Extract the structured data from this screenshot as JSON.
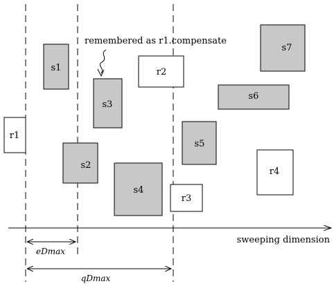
{
  "annotation": {
    "text": "remembered as r1.compensate"
  },
  "axis": {
    "label": "sweeping dimension"
  },
  "dimensions": [
    {
      "id": "eDmax",
      "label": "eDmax"
    },
    {
      "id": "qDmax",
      "label": "qDmax"
    }
  ],
  "rectangles": [
    {
      "id": "r1",
      "label": "r1",
      "shaded": false
    },
    {
      "id": "r2",
      "label": "r2",
      "shaded": false
    },
    {
      "id": "r3",
      "label": "r3",
      "shaded": false
    },
    {
      "id": "r4",
      "label": "r4",
      "shaded": false
    },
    {
      "id": "s1",
      "label": "s1",
      "shaded": true
    },
    {
      "id": "s2",
      "label": "s2",
      "shaded": true
    },
    {
      "id": "s3",
      "label": "s3",
      "shaded": true
    },
    {
      "id": "s4",
      "label": "s4",
      "shaded": true
    },
    {
      "id": "s5",
      "label": "s5",
      "shaded": true
    },
    {
      "id": "s6",
      "label": "s6",
      "shaded": true
    },
    {
      "id": "s7",
      "label": "s7",
      "shaded": true
    }
  ],
  "colors": {
    "shaded": "#c8c8c8",
    "outline": "#000000",
    "background": "#ffffff"
  }
}
